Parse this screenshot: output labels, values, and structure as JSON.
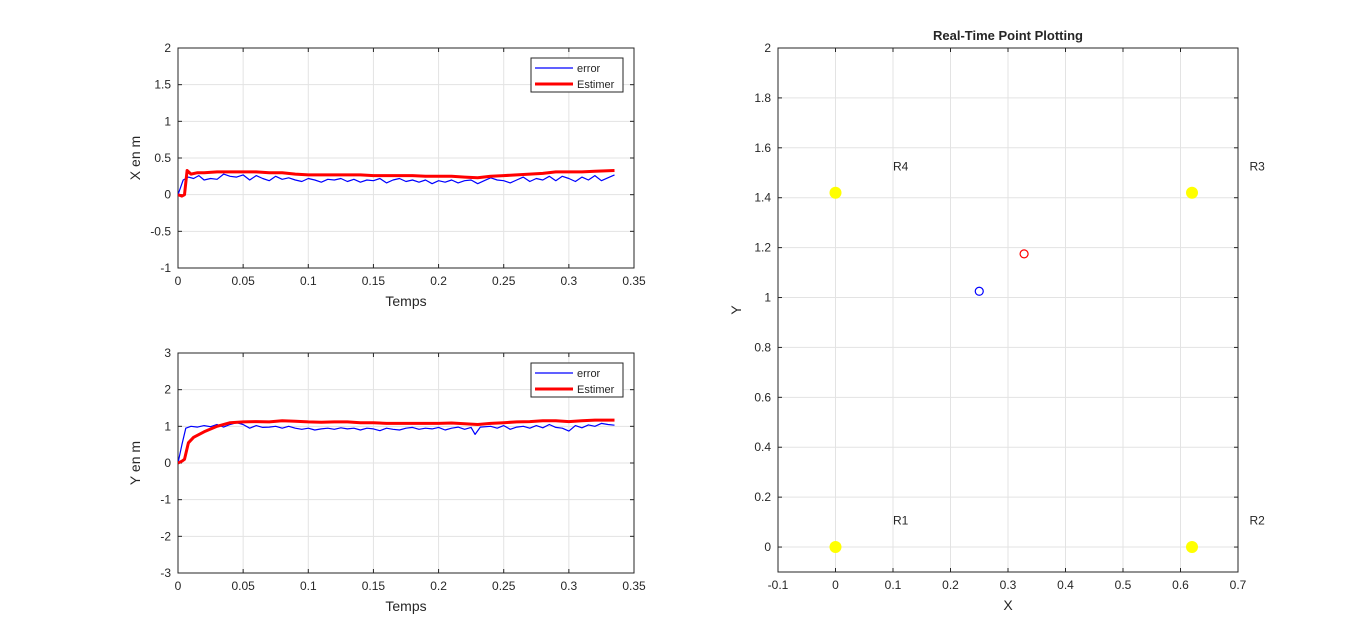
{
  "chart_data": [
    {
      "type": "line",
      "title": "",
      "xlabel": "Temps",
      "ylabel": "X en m",
      "xlim": [
        0,
        0.35
      ],
      "ylim": [
        -1,
        2
      ],
      "xticks": [
        0,
        0.05,
        0.1,
        0.15,
        0.2,
        0.25,
        0.3,
        0.35
      ],
      "xticklabels": [
        "0",
        "0.05",
        "0.1",
        "0.15",
        "0.2",
        "0.25",
        "0.3",
        "0.35"
      ],
      "yticks": [
        -1,
        -0.5,
        0,
        0.5,
        1,
        1.5,
        2
      ],
      "yticklabels": [
        "-1",
        "-0.5",
        "0",
        "0.5",
        "1",
        "1.5",
        "2"
      ],
      "grid": true,
      "legend_position": "top-right",
      "series": [
        {
          "name": "error",
          "color": "#0000ff",
          "x": [
            0,
            0.004,
            0.008,
            0.012,
            0.016,
            0.02,
            0.025,
            0.03,
            0.035,
            0.04,
            0.045,
            0.05,
            0.055,
            0.06,
            0.065,
            0.07,
            0.075,
            0.08,
            0.085,
            0.09,
            0.095,
            0.1,
            0.105,
            0.11,
            0.115,
            0.12,
            0.125,
            0.13,
            0.135,
            0.14,
            0.145,
            0.15,
            0.155,
            0.16,
            0.165,
            0.17,
            0.175,
            0.18,
            0.185,
            0.19,
            0.195,
            0.2,
            0.205,
            0.21,
            0.215,
            0.22,
            0.225,
            0.23,
            0.235,
            0.24,
            0.245,
            0.25,
            0.255,
            0.26,
            0.265,
            0.27,
            0.275,
            0.28,
            0.285,
            0.29,
            0.295,
            0.3,
            0.305,
            0.31,
            0.315,
            0.32,
            0.325,
            0.33,
            0.335
          ],
          "values": [
            0,
            0.2,
            0.24,
            0.22,
            0.26,
            0.2,
            0.22,
            0.21,
            0.28,
            0.25,
            0.24,
            0.27,
            0.2,
            0.26,
            0.22,
            0.19,
            0.25,
            0.21,
            0.23,
            0.2,
            0.18,
            0.22,
            0.2,
            0.17,
            0.21,
            0.2,
            0.22,
            0.18,
            0.21,
            0.17,
            0.2,
            0.19,
            0.22,
            0.16,
            0.2,
            0.22,
            0.18,
            0.2,
            0.17,
            0.2,
            0.15,
            0.19,
            0.17,
            0.2,
            0.16,
            0.19,
            0.2,
            0.15,
            0.19,
            0.23,
            0.2,
            0.19,
            0.16,
            0.2,
            0.24,
            0.18,
            0.22,
            0.2,
            0.25,
            0.19,
            0.25,
            0.22,
            0.18,
            0.24,
            0.2,
            0.26,
            0.19,
            0.23,
            0.27
          ]
        },
        {
          "name": "Estimer",
          "color": "#ff0000",
          "x": [
            0,
            0.003,
            0.005,
            0.007,
            0.01,
            0.015,
            0.02,
            0.03,
            0.04,
            0.05,
            0.06,
            0.07,
            0.08,
            0.09,
            0.1,
            0.11,
            0.12,
            0.13,
            0.14,
            0.15,
            0.16,
            0.17,
            0.18,
            0.19,
            0.2,
            0.21,
            0.22,
            0.23,
            0.24,
            0.25,
            0.26,
            0.27,
            0.28,
            0.29,
            0.3,
            0.31,
            0.32,
            0.335
          ],
          "values": [
            0,
            -0.02,
            0.0,
            0.33,
            0.28,
            0.3,
            0.3,
            0.31,
            0.31,
            0.31,
            0.31,
            0.3,
            0.3,
            0.28,
            0.27,
            0.27,
            0.27,
            0.27,
            0.27,
            0.26,
            0.26,
            0.26,
            0.26,
            0.25,
            0.25,
            0.25,
            0.24,
            0.23,
            0.25,
            0.26,
            0.27,
            0.28,
            0.29,
            0.31,
            0.31,
            0.31,
            0.32,
            0.33
          ]
        }
      ]
    },
    {
      "type": "line",
      "title": "",
      "xlabel": "Temps",
      "ylabel": "Y en m",
      "xlim": [
        0,
        0.35
      ],
      "ylim": [
        -3,
        3
      ],
      "xticks": [
        0,
        0.05,
        0.1,
        0.15,
        0.2,
        0.25,
        0.3,
        0.35
      ],
      "xticklabels": [
        "0",
        "0.05",
        "0.1",
        "0.15",
        "0.2",
        "0.25",
        "0.3",
        "0.35"
      ],
      "yticks": [
        -3,
        -2,
        -1,
        0,
        1,
        2,
        3
      ],
      "yticklabels": [
        "-3",
        "-2",
        "-1",
        "0",
        "1",
        "2",
        "3"
      ],
      "grid": true,
      "legend_position": "top-right",
      "series": [
        {
          "name": "error",
          "color": "#0000ff",
          "x": [
            0,
            0.003,
            0.006,
            0.01,
            0.015,
            0.02,
            0.025,
            0.03,
            0.035,
            0.04,
            0.045,
            0.05,
            0.055,
            0.06,
            0.065,
            0.07,
            0.075,
            0.08,
            0.085,
            0.09,
            0.095,
            0.1,
            0.105,
            0.11,
            0.115,
            0.12,
            0.125,
            0.13,
            0.135,
            0.14,
            0.145,
            0.15,
            0.155,
            0.16,
            0.165,
            0.17,
            0.175,
            0.18,
            0.185,
            0.19,
            0.195,
            0.2,
            0.205,
            0.21,
            0.215,
            0.22,
            0.225,
            0.228,
            0.232,
            0.24,
            0.245,
            0.25,
            0.255,
            0.26,
            0.265,
            0.27,
            0.275,
            0.28,
            0.285,
            0.29,
            0.295,
            0.3,
            0.305,
            0.31,
            0.315,
            0.32,
            0.325,
            0.33,
            0.335
          ],
          "values": [
            0,
            0.5,
            0.95,
            1.0,
            0.98,
            1.02,
            0.99,
            1.05,
            0.98,
            1.05,
            1.1,
            1.05,
            0.95,
            1.02,
            0.97,
            0.98,
            1.0,
            0.95,
            1.0,
            0.95,
            0.92,
            0.95,
            0.9,
            0.93,
            0.95,
            0.92,
            0.96,
            0.93,
            0.95,
            0.9,
            0.95,
            0.93,
            0.88,
            0.95,
            0.92,
            0.9,
            0.95,
            0.97,
            0.92,
            0.95,
            0.93,
            0.97,
            0.9,
            0.95,
            0.98,
            0.92,
            0.97,
            0.78,
            0.98,
            1.0,
            0.95,
            1.02,
            0.92,
            0.98,
            1.0,
            0.95,
            1.02,
            0.96,
            1.05,
            0.97,
            0.95,
            0.87,
            1.02,
            0.96,
            1.04,
            1.0,
            1.08,
            1.05,
            1.03
          ]
        },
        {
          "name": "Estimer",
          "color": "#ff0000",
          "x": [
            0,
            0.003,
            0.005,
            0.008,
            0.012,
            0.02,
            0.03,
            0.04,
            0.05,
            0.06,
            0.07,
            0.08,
            0.09,
            0.1,
            0.11,
            0.12,
            0.13,
            0.14,
            0.15,
            0.16,
            0.17,
            0.18,
            0.19,
            0.2,
            0.21,
            0.22,
            0.23,
            0.24,
            0.25,
            0.26,
            0.27,
            0.28,
            0.29,
            0.3,
            0.31,
            0.32,
            0.335
          ],
          "values": [
            0,
            0.05,
            0.1,
            0.55,
            0.7,
            0.85,
            1.0,
            1.1,
            1.12,
            1.13,
            1.12,
            1.15,
            1.14,
            1.12,
            1.11,
            1.12,
            1.12,
            1.1,
            1.1,
            1.08,
            1.08,
            1.08,
            1.08,
            1.08,
            1.09,
            1.07,
            1.05,
            1.08,
            1.1,
            1.12,
            1.13,
            1.15,
            1.15,
            1.13,
            1.15,
            1.17,
            1.17
          ]
        }
      ]
    },
    {
      "type": "scatter",
      "title": "Real-Time Point Plotting",
      "xlabel": "X",
      "ylabel": "Y",
      "xlim": [
        -0.1,
        0.7
      ],
      "ylim": [
        -0.1,
        2
      ],
      "xticks": [
        -0.1,
        0,
        0.1,
        0.2,
        0.3,
        0.4,
        0.5,
        0.6,
        0.7
      ],
      "xticklabels": [
        "-0.1",
        "0",
        "0.1",
        "0.2",
        "0.3",
        "0.4",
        "0.5",
        "0.6",
        "0.7"
      ],
      "yticks": [
        0,
        0.2,
        0.4,
        0.6,
        0.8,
        1,
        1.2,
        1.4,
        1.6,
        1.8,
        2
      ],
      "yticklabels": [
        "0",
        "0.2",
        "0.4",
        "0.6",
        "0.8",
        "1",
        "1.2",
        "1.4",
        "1.6",
        "1.8",
        "2"
      ],
      "grid": true,
      "series": [
        {
          "marker": "filled-circle",
          "color": "#ffff00",
          "points": [
            {
              "x": 0,
              "y": 0
            },
            {
              "x": 0.62,
              "y": 0
            },
            {
              "x": 0.62,
              "y": 1.42
            },
            {
              "x": 0,
              "y": 1.42
            }
          ]
        },
        {
          "marker": "open-circle",
          "color": "#0000ff",
          "points": [
            {
              "x": 0.25,
              "y": 1.025
            }
          ]
        },
        {
          "marker": "open-circle",
          "color": "#ff0000",
          "points": [
            {
              "x": 0.328,
              "y": 1.175
            }
          ]
        }
      ],
      "annotations": [
        {
          "text": "R1",
          "x": 0.1,
          "y": 0.09
        },
        {
          "text": "R2",
          "x": 0.72,
          "y": 0.09
        },
        {
          "text": "R3",
          "x": 0.72,
          "y": 1.51
        },
        {
          "text": "R4",
          "x": 0.1,
          "y": 1.51
        }
      ]
    }
  ]
}
